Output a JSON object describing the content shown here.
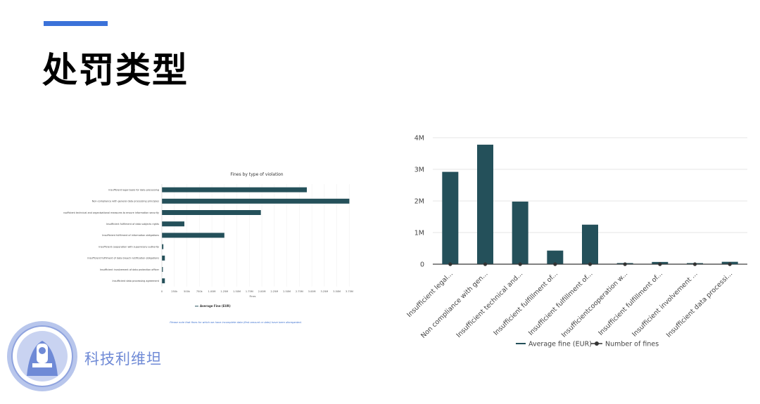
{
  "slide": {
    "title": "处罚类型",
    "accent_color": "#3b72d9",
    "brand_name": "科技利维坦",
    "brand_color": "#6f8ad6"
  },
  "chart_data": [
    {
      "type": "bar",
      "orientation": "horizontal",
      "title": "Fines by type of violation",
      "xlabel": "Fines",
      "ylabel": "",
      "xlim": [
        0,
        3800000
      ],
      "x_ticks": [
        0,
        250000,
        500000,
        750000,
        1000000,
        1250000,
        1500000,
        1750000,
        2000000,
        2250000,
        2500000,
        2750000,
        3000000,
        3250000,
        3500000,
        3750000
      ],
      "x_tick_labels": [
        "0",
        "250k",
        "500k",
        "750k",
        "1.00M",
        "1.25M",
        "1.50M",
        "1.75M",
        "2.00M",
        "2.25M",
        "2.50M",
        "2.75M",
        "3.00M",
        "3.25M",
        "3.50M",
        "3.75M"
      ],
      "categories": [
        "Insufficient legal basis for data processing",
        "Non-compliance with general data processing principles",
        "Insufficient technical and organisational measures to ensure information security",
        "Insufficient fulfilment of data subjects rights",
        "Insufficient fulfilment of information obligations",
        "Insufficient cooperation with supervisory authority",
        "Insufficient fulfilment of data breach notification obligations",
        "Insufficient involvement of data protection officer",
        "Insufficient data processing agreement"
      ],
      "values": [
        2900000,
        3750000,
        1980000,
        450000,
        1250000,
        30000,
        60000,
        20000,
        60000
      ],
      "legend": [
        "Average Fine (EUR)"
      ],
      "legend_position": "bottom",
      "bar_color": "#24505a",
      "note": "Please note that fines for which we have incomplete data (first amount or date) have been disregarded."
    },
    {
      "type": "bar",
      "title": "",
      "xlabel": "",
      "ylabel": "",
      "ylim": [
        0,
        4000000
      ],
      "y_ticks": [
        0,
        1000000,
        2000000,
        3000000,
        4000000
      ],
      "y_tick_labels": [
        "0",
        "1M",
        "2M",
        "3M",
        "4M"
      ],
      "categories": [
        "Insufficient legal...",
        "Non compliance with gen...",
        "Insufficient technical and...",
        "Insufficient fulfillment of...",
        "Insufficient fulfillment of...",
        "Insufficientcooperation w...",
        "Insufficient fulfillment of...",
        "Insufficient involvement ...",
        "Insufficient data processi..."
      ],
      "series": [
        {
          "name": "Average fine (EUR)",
          "type": "bar",
          "color": "#24505a",
          "values": [
            2920000,
            3780000,
            1980000,
            430000,
            1250000,
            35000,
            70000,
            10000,
            75000
          ]
        },
        {
          "name": "Number of fines",
          "type": "line",
          "color": "#333333",
          "values": [
            0,
            0,
            0,
            0,
            0,
            0,
            0,
            0,
            0
          ]
        }
      ],
      "grid": true,
      "legend_position": "bottom"
    }
  ]
}
